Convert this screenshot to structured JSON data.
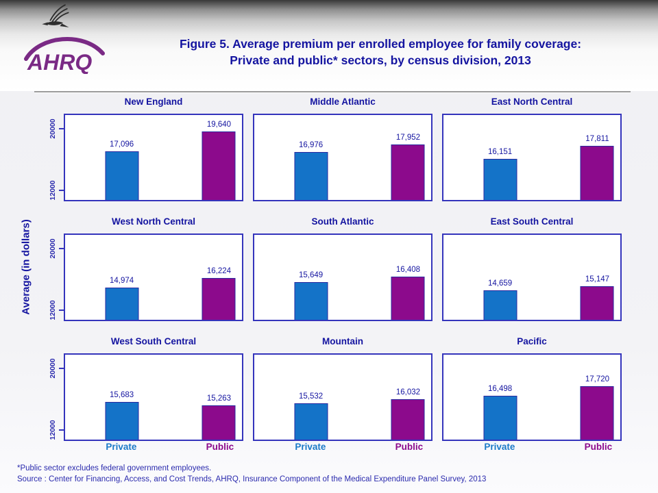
{
  "header": {
    "logo_text": "AHRQ",
    "title_line1": "Figure 5. Average premium per enrolled employee for family coverage:",
    "title_line2": "Private and public* sectors, by census division, 2013"
  },
  "y_axis_title": "Average (in dollars)",
  "footnotes": {
    "note": "*Public sector excludes federal government employees.",
    "source": "Source : Center for Financing, Access, and Cost Trends, AHRQ, Insurance Component of the Medical Expenditure Panel Survey,  2013"
  },
  "colors": {
    "title_text": "#1414a0",
    "plot_border": "#3434bc",
    "private_fill": "#1473c8",
    "private_border": "#2a2aa0",
    "public_fill": "#8c0a8c",
    "public_border": "#2a2aa0",
    "private_label": "#1b7ac8",
    "public_label": "#8c0a8c",
    "footnote_text": "#2a2aad",
    "logo_purple": "#7a2a85"
  },
  "chart_data": {
    "type": "bar",
    "categories": [
      "Private",
      "Public"
    ],
    "y_ticks": [
      12000,
      20000
    ],
    "ylim": [
      10800,
      21800
    ],
    "bar_centers_pct": [
      32,
      87
    ],
    "grid": "off",
    "legend": "none",
    "ylabel": "Average (in dollars)",
    "panels": [
      {
        "title": "New England",
        "values": [
          17096,
          19640
        ],
        "labels": [
          "17,096",
          "19,640"
        ]
      },
      {
        "title": "Middle Atlantic",
        "values": [
          16976,
          17952
        ],
        "labels": [
          "16,976",
          "17,952"
        ]
      },
      {
        "title": "East North Central",
        "values": [
          16151,
          17811
        ],
        "labels": [
          "16,151",
          "17,811"
        ]
      },
      {
        "title": "West North Central",
        "values": [
          14974,
          16224
        ],
        "labels": [
          "14,974",
          "16,224"
        ]
      },
      {
        "title": "South Atlantic",
        "values": [
          15649,
          16408
        ],
        "labels": [
          "15,649",
          "16,408"
        ]
      },
      {
        "title": "East South Central",
        "values": [
          14659,
          15147
        ],
        "labels": [
          "14,659",
          "15,147"
        ]
      },
      {
        "title": "West South Central",
        "values": [
          15683,
          15263
        ],
        "labels": [
          "15,683",
          "15,263"
        ]
      },
      {
        "title": "Mountain",
        "values": [
          15532,
          16032
        ],
        "labels": [
          "15,532",
          "16,032"
        ]
      },
      {
        "title": "Pacific",
        "values": [
          16498,
          17720
        ],
        "labels": [
          "16,498",
          "17,720"
        ]
      }
    ]
  }
}
